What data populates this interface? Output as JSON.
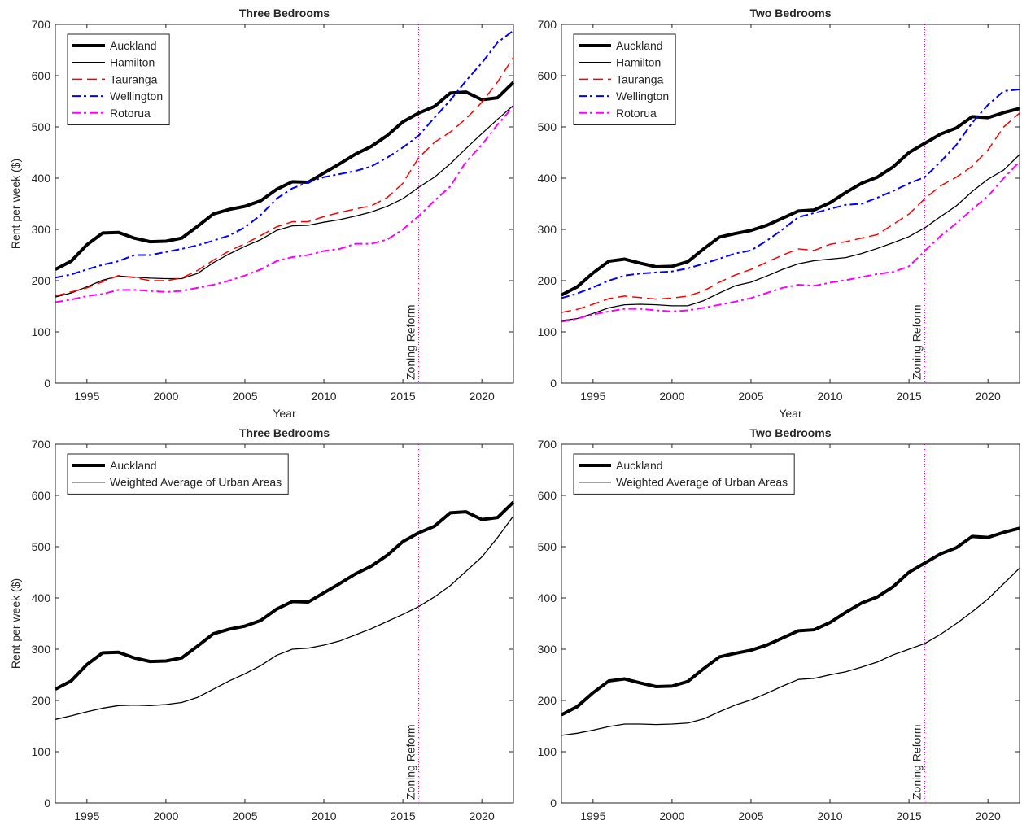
{
  "chart_data": [
    {
      "type": "line",
      "title": "Three Bedrooms",
      "xlabel": "Year",
      "ylabel": "Rent per week ($)",
      "xlim": [
        1993,
        2022
      ],
      "ylim": [
        0,
        700
      ],
      "xticks": [
        1995,
        2000,
        2005,
        2010,
        2015,
        2020
      ],
      "yticks": [
        0,
        100,
        200,
        300,
        400,
        500,
        600,
        700
      ],
      "legend": "upper-left",
      "x": [
        1993,
        1994,
        1995,
        1996,
        1997,
        1998,
        1999,
        2000,
        2001,
        2002,
        2003,
        2004,
        2005,
        2006,
        2007,
        2008,
        2009,
        2010,
        2011,
        2012,
        2013,
        2014,
        2015,
        2016,
        2017,
        2018,
        2019,
        2020,
        2021,
        2022
      ],
      "series": [
        {
          "name": "Auckland",
          "color": "#000000",
          "linewidth": 4,
          "linestyle": "solid",
          "values": [
            222,
            238,
            270,
            293,
            294,
            283,
            276,
            277,
            283,
            306,
            330,
            339,
            345,
            356,
            378,
            393,
            392,
            410,
            428,
            447,
            462,
            483,
            510,
            527,
            540,
            566,
            568,
            553,
            557,
            587
          ]
        },
        {
          "name": "Hamilton",
          "color": "#000000",
          "linewidth": 1.3,
          "linestyle": "solid",
          "values": [
            168,
            176,
            188,
            201,
            209,
            207,
            205,
            204,
            204,
            214,
            235,
            252,
            267,
            280,
            298,
            307,
            308,
            314,
            319,
            326,
            334,
            345,
            360,
            382,
            402,
            428,
            458,
            487,
            515,
            542
          ]
        },
        {
          "name": "Tauranga",
          "color": "#ff0000",
          "linewidth": 1.5,
          "linestyle": "dashed",
          "values": [
            170,
            178,
            186,
            198,
            210,
            206,
            200,
            200,
            205,
            220,
            240,
            258,
            272,
            288,
            305,
            315,
            315,
            325,
            333,
            340,
            346,
            362,
            390,
            440,
            470,
            490,
            516,
            548,
            588,
            636
          ]
        },
        {
          "name": "Wellington",
          "color": "#0000ff",
          "linewidth": 2,
          "linestyle": "dashdot",
          "values": [
            206,
            212,
            222,
            231,
            238,
            250,
            250,
            256,
            262,
            269,
            278,
            288,
            304,
            328,
            360,
            380,
            392,
            402,
            408,
            414,
            423,
            440,
            460,
            483,
            518,
            552,
            590,
            625,
            665,
            688
          ]
        },
        {
          "name": "Rotorua",
          "color": "#ff00ff",
          "linewidth": 2,
          "linestyle": "dashdot",
          "values": [
            158,
            163,
            170,
            174,
            182,
            182,
            180,
            178,
            180,
            186,
            192,
            200,
            210,
            222,
            238,
            246,
            250,
            258,
            262,
            272,
            272,
            280,
            300,
            326,
            356,
            384,
            432,
            465,
            505,
            540
          ]
        }
      ],
      "annotations": [
        {
          "text": "Zoning Reform",
          "x": 2016,
          "color": "#ff00ff"
        }
      ]
    },
    {
      "type": "line",
      "title": "Two Bedrooms",
      "xlabel": "Year",
      "xlim": [
        1993,
        2022
      ],
      "ylim": [
        0,
        700
      ],
      "xticks": [
        1995,
        2000,
        2005,
        2010,
        2015,
        2020
      ],
      "yticks": [
        0,
        100,
        200,
        300,
        400,
        500,
        600,
        700
      ],
      "legend": "upper-left",
      "x": [
        1993,
        1994,
        1995,
        1996,
        1997,
        1998,
        1999,
        2000,
        2001,
        2002,
        2003,
        2004,
        2005,
        2006,
        2007,
        2008,
        2009,
        2010,
        2011,
        2012,
        2013,
        2014,
        2015,
        2016,
        2017,
        2018,
        2019,
        2020,
        2021,
        2022
      ],
      "series": [
        {
          "name": "Auckland",
          "color": "#000000",
          "linewidth": 4,
          "linestyle": "solid",
          "values": [
            172,
            188,
            215,
            238,
            242,
            234,
            227,
            228,
            237,
            262,
            285,
            292,
            298,
            308,
            322,
            336,
            338,
            352,
            372,
            390,
            402,
            422,
            450,
            468,
            486,
            498,
            520,
            518,
            528,
            536
          ]
        },
        {
          "name": "Hamilton",
          "color": "#000000",
          "linewidth": 1.3,
          "linestyle": "solid",
          "values": [
            122,
            126,
            136,
            147,
            153,
            154,
            153,
            151,
            151,
            161,
            176,
            190,
            197,
            209,
            222,
            233,
            239,
            242,
            245,
            253,
            263,
            274,
            286,
            303,
            325,
            346,
            374,
            398,
            416,
            446
          ]
        },
        {
          "name": "Tauranga",
          "color": "#ff0000",
          "linewidth": 1.5,
          "linestyle": "dashed",
          "values": [
            138,
            144,
            154,
            165,
            170,
            167,
            164,
            166,
            170,
            180,
            197,
            211,
            222,
            236,
            250,
            262,
            259,
            271,
            276,
            283,
            290,
            310,
            330,
            360,
            385,
            402,
            423,
            455,
            500,
            527
          ]
        },
        {
          "name": "Wellington",
          "color": "#0000ff",
          "linewidth": 2,
          "linestyle": "dashdot",
          "values": [
            166,
            175,
            187,
            200,
            210,
            214,
            216,
            218,
            224,
            233,
            243,
            253,
            259,
            278,
            300,
            324,
            332,
            340,
            348,
            350,
            362,
            375,
            390,
            402,
            432,
            465,
            508,
            543,
            570,
            573
          ]
        },
        {
          "name": "Rotorua",
          "color": "#ff00ff",
          "linewidth": 2,
          "linestyle": "dashdot",
          "values": [
            120,
            126,
            134,
            140,
            145,
            145,
            142,
            140,
            142,
            147,
            153,
            159,
            166,
            176,
            186,
            192,
            190,
            196,
            201,
            207,
            213,
            217,
            228,
            258,
            287,
            312,
            339,
            365,
            400,
            432
          ]
        }
      ],
      "annotations": [
        {
          "text": "Zoning Reform",
          "x": 2016,
          "color": "#ff00ff"
        }
      ]
    },
    {
      "type": "line",
      "title": "Three Bedrooms",
      "ylabel": "Rent per week ($)",
      "xlim": [
        1993,
        2022
      ],
      "ylim": [
        0,
        700
      ],
      "xticks": [
        1995,
        2000,
        2005,
        2010,
        2015,
        2020
      ],
      "yticks": [
        0,
        100,
        200,
        300,
        400,
        500,
        600,
        700
      ],
      "legend": "upper-left",
      "x": [
        1993,
        1994,
        1995,
        1996,
        1997,
        1998,
        1999,
        2000,
        2001,
        2002,
        2003,
        2004,
        2005,
        2006,
        2007,
        2008,
        2009,
        2010,
        2011,
        2012,
        2013,
        2014,
        2015,
        2016,
        2017,
        2018,
        2019,
        2020,
        2021,
        2022
      ],
      "series": [
        {
          "name": "Auckland",
          "color": "#000000",
          "linewidth": 4,
          "linestyle": "solid",
          "values": [
            222,
            238,
            270,
            293,
            294,
            283,
            276,
            277,
            283,
            306,
            330,
            339,
            345,
            356,
            378,
            393,
            392,
            410,
            428,
            447,
            462,
            483,
            510,
            527,
            540,
            566,
            568,
            553,
            557,
            587
          ]
        },
        {
          "name": "Weighted Average of Urban Areas",
          "color": "#000000",
          "linewidth": 1.3,
          "linestyle": "solid",
          "values": [
            163,
            170,
            178,
            185,
            190,
            191,
            190,
            192,
            196,
            206,
            222,
            238,
            252,
            268,
            288,
            300,
            302,
            308,
            316,
            328,
            340,
            354,
            368,
            383,
            402,
            424,
            452,
            480,
            518,
            560
          ]
        }
      ],
      "annotations": [
        {
          "text": "Zoning Reform",
          "x": 2016,
          "color": "#ff00ff"
        }
      ]
    },
    {
      "type": "line",
      "title": "Two Bedrooms",
      "xlim": [
        1993,
        2022
      ],
      "ylim": [
        0,
        700
      ],
      "xticks": [
        1995,
        2000,
        2005,
        2010,
        2015,
        2020
      ],
      "yticks": [
        0,
        100,
        200,
        300,
        400,
        500,
        600,
        700
      ],
      "legend": "upper-left",
      "x": [
        1993,
        1994,
        1995,
        1996,
        1997,
        1998,
        1999,
        2000,
        2001,
        2002,
        2003,
        2004,
        2005,
        2006,
        2007,
        2008,
        2009,
        2010,
        2011,
        2012,
        2013,
        2014,
        2015,
        2016,
        2017,
        2018,
        2019,
        2020,
        2021,
        2022
      ],
      "series": [
        {
          "name": "Auckland",
          "color": "#000000",
          "linewidth": 4,
          "linestyle": "solid",
          "values": [
            172,
            188,
            215,
            238,
            242,
            234,
            227,
            228,
            237,
            262,
            285,
            292,
            298,
            308,
            322,
            336,
            338,
            352,
            372,
            390,
            402,
            422,
            450,
            468,
            486,
            498,
            520,
            518,
            528,
            536
          ]
        },
        {
          "name": "Weighted Average of Urban Areas",
          "color": "#000000",
          "linewidth": 1.3,
          "linestyle": "solid",
          "values": [
            132,
            136,
            142,
            149,
            154,
            154,
            153,
            154,
            156,
            164,
            178,
            191,
            201,
            214,
            228,
            241,
            243,
            250,
            256,
            265,
            275,
            289,
            300,
            311,
            329,
            350,
            373,
            398,
            428,
            458
          ]
        }
      ],
      "annotations": [
        {
          "text": "Zoning Reform",
          "x": 2016,
          "color": "#ff00ff"
        }
      ]
    }
  ]
}
